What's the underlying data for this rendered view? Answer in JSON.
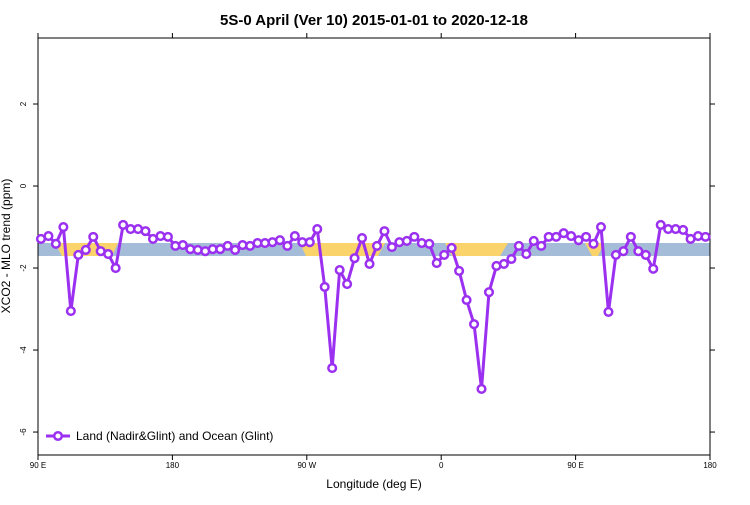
{
  "chart_data": {
    "type": "line",
    "title": "5S-0 April (Ver 10)   2015-01-01 to 2020-12-18",
    "x_label": "Longitude (deg E)",
    "y_label": "XCO2 - MLO trend (ppm)",
    "xlim": [
      90,
      540
    ],
    "xticks": [
      {
        "value": 90,
        "label": "90 E"
      },
      {
        "value": 180,
        "label": "180"
      },
      {
        "value": 270,
        "label": "90 W"
      },
      {
        "value": 360,
        "label": "0"
      },
      {
        "value": 450,
        "label": "90 E"
      },
      {
        "value": 540,
        "label": "180"
      }
    ],
    "ylim": [
      -6.56,
      3.61
    ],
    "yticks": [
      -6,
      -4,
      -2,
      0,
      2
    ],
    "legend": "bottom-left",
    "x": [
      92,
      97,
      102,
      107,
      112,
      117,
      122,
      127,
      132,
      137,
      142,
      147,
      152,
      157,
      162,
      167,
      172,
      177,
      182,
      187,
      192,
      197,
      202,
      207,
      212,
      217,
      222,
      227,
      232,
      237,
      242,
      247,
      252,
      257,
      262,
      267,
      272,
      277,
      282,
      287,
      292,
      297,
      302,
      307,
      312,
      317,
      322,
      327,
      332,
      337,
      342,
      347,
      352,
      357,
      362,
      367,
      372,
      377,
      382,
      387,
      392,
      397,
      402,
      407,
      412,
      417,
      422,
      427,
      432,
      437,
      442,
      447,
      452,
      457,
      462,
      467,
      472,
      477,
      482,
      487,
      492,
      497,
      502,
      507,
      512,
      517,
      522,
      527,
      532,
      537
    ],
    "series": [
      {
        "name": "Land (Nadir&Glint) and Ocean (Glint)",
        "color": "#9b30f0",
        "values": [
          -1.29,
          -1.22,
          -1.41,
          -1.0,
          -3.05,
          -1.68,
          -1.56,
          -1.24,
          -1.59,
          -1.66,
          -2.0,
          -0.95,
          -1.05,
          -1.05,
          -1.1,
          -1.29,
          -1.22,
          -1.24,
          -1.46,
          -1.44,
          -1.54,
          -1.56,
          -1.59,
          -1.54,
          -1.54,
          -1.46,
          -1.56,
          -1.44,
          -1.46,
          -1.39,
          -1.39,
          -1.37,
          -1.32,
          -1.46,
          -1.22,
          -1.37,
          -1.37,
          -1.05,
          -2.46,
          -4.44,
          -2.05,
          -2.39,
          -1.76,
          -1.27,
          -1.9,
          -1.46,
          -1.1,
          -1.49,
          -1.37,
          -1.34,
          -1.24,
          -1.39,
          -1.41,
          -1.88,
          -1.68,
          -1.51,
          -2.07,
          -2.78,
          -3.37,
          -4.95,
          -2.59,
          -1.95,
          -1.9,
          -1.78,
          -1.46,
          -1.66,
          -1.34,
          -1.46,
          -1.24,
          -1.24,
          -1.15,
          -1.22,
          -1.32,
          -1.24,
          -1.41,
          -1.0,
          -3.07,
          -1.68,
          -1.59,
          -1.24,
          -1.59,
          -1.68,
          -2.02,
          -0.95,
          -1.05,
          -1.05,
          -1.07,
          -1.29,
          -1.22,
          -1.24
        ]
      }
    ]
  }
}
